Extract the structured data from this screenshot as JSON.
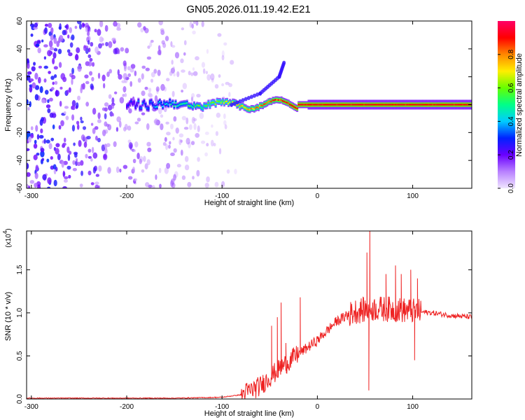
{
  "figure": {
    "title": "GN05.2026.011.19.42.E21"
  },
  "chart_data": [
    {
      "type": "heatmap",
      "title": "GN05.2026.011.19.42.E21",
      "xlabel": "Height of straight line (km)",
      "ylabel": "Frequency (Hz)",
      "xlim": [
        -305,
        162
      ],
      "ylim": [
        -60,
        60
      ],
      "xticks": [
        -300,
        -200,
        -100,
        0,
        100
      ],
      "yticks": [
        60,
        40,
        20,
        0,
        -20,
        -40,
        -60
      ],
      "colorbar": {
        "label": "Normalized spectral amplitude",
        "range": [
          0.0,
          1.0
        ],
        "ticks": [
          0.0,
          0.2,
          0.4,
          0.6,
          0.8
        ],
        "colormap": [
          "#f0e6ff",
          "#b880ff",
          "#6a00ff",
          "#0022ff",
          "#00ccff",
          "#00ff88",
          "#66ff00",
          "#ffee00",
          "#ff8800",
          "#ff0000",
          "#ff0066"
        ]
      },
      "features": [
        {
          "name": "noise",
          "x_range": [
            -305,
            -85
          ],
          "freq_range": [
            -60,
            60
          ],
          "amplitude": 0.1
        },
        {
          "name": "main ridge",
          "x_range": [
            -200,
            162
          ],
          "freq_center": 0,
          "amplitude": 0.9
        },
        {
          "name": "rising branch",
          "x": [
            -90,
            -60,
            -40,
            -35
          ],
          "freq": [
            0,
            8,
            20,
            30
          ],
          "amplitude": 0.25
        }
      ]
    },
    {
      "type": "line",
      "xlabel": "Height of straight line (km)",
      "ylabel": "SNR (10 * v/v)",
      "y_multiplier": "(x10",
      "y_multiplier_exp": "4",
      "xlim": [
        -305,
        162
      ],
      "ylim": [
        0,
        1.95
      ],
      "xticks": [
        -300,
        -200,
        -100,
        0,
        100
      ],
      "yticks": [
        0.0,
        0.5,
        1.0,
        1.5
      ],
      "color": "#ee2222",
      "envelope": {
        "x": [
          -305,
          -150,
          -100,
          -80,
          -60,
          -40,
          -20,
          0,
          20,
          40,
          60,
          80,
          100,
          120,
          140,
          162
        ],
        "y": [
          0.01,
          0.01,
          0.02,
          0.05,
          0.15,
          0.35,
          0.52,
          0.68,
          0.9,
          1.02,
          1.05,
          1.04,
          1.02,
          1.0,
          0.97,
          0.95
        ]
      },
      "spikes": [
        {
          "x": -48,
          "y": 0.85
        },
        {
          "x": -42,
          "y": 0.95
        },
        {
          "x": -38,
          "y": 1.12
        },
        {
          "x": -33,
          "y": 0.65
        },
        {
          "x": -18,
          "y": 1.18
        },
        {
          "x": 52,
          "y": 1.7
        },
        {
          "x": 55,
          "y": 2.0
        },
        {
          "x": 54,
          "y": 0.1
        },
        {
          "x": 72,
          "y": 1.45
        },
        {
          "x": 82,
          "y": 1.55
        },
        {
          "x": 88,
          "y": 1.45
        },
        {
          "x": 98,
          "y": 1.5
        },
        {
          "x": 105,
          "y": 1.4
        },
        {
          "x": 102,
          "y": 0.45
        }
      ]
    }
  ]
}
